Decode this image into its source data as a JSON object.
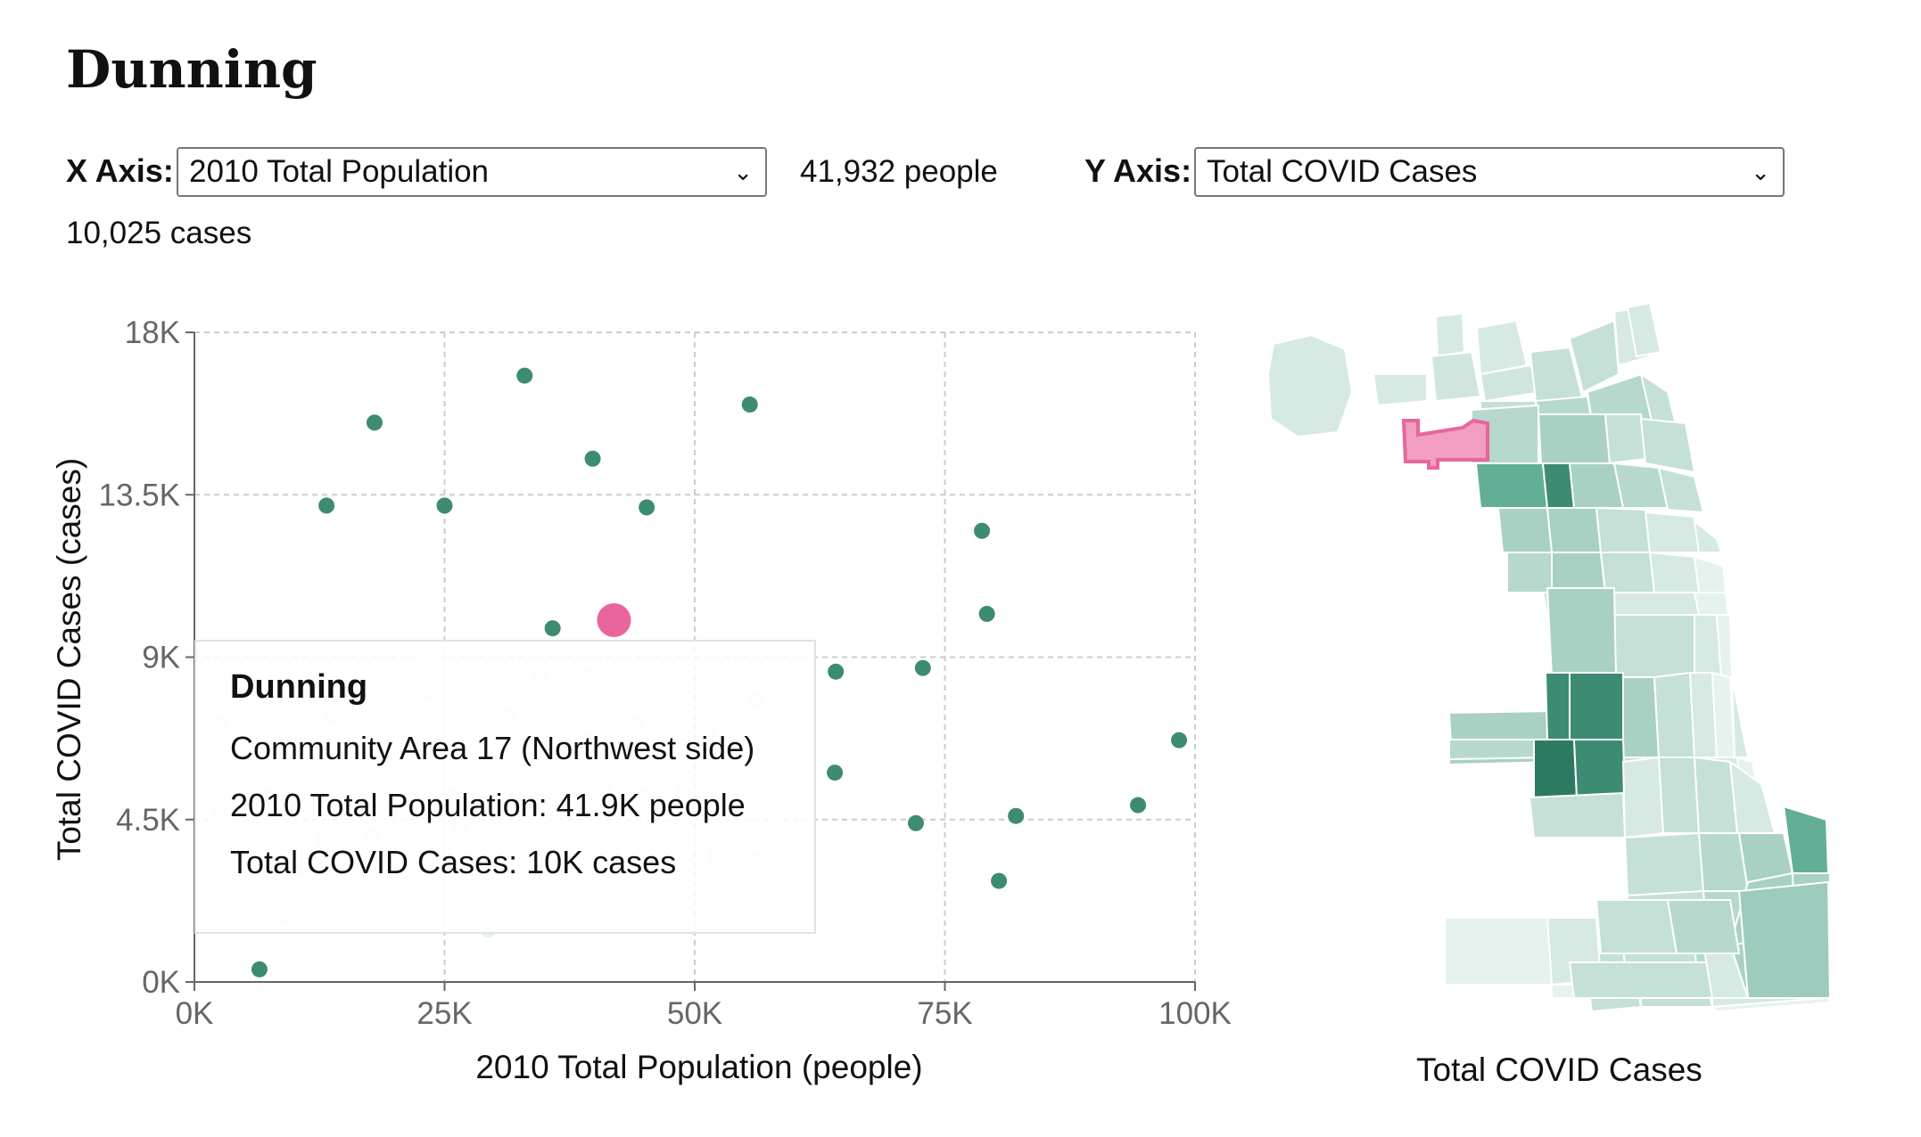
{
  "title": "Dunning",
  "controls": {
    "x_label": "X Axis:",
    "x_selected": "2010 Total Population",
    "x_value": "41,932 people",
    "y_label": "Y Axis:",
    "y_selected": "Total COVID Cases",
    "y_value": "10,025 cases"
  },
  "colors": {
    "point": "#3d8b73",
    "point_faded": "#e6f2ee",
    "highlight": "#e8659d",
    "highlight_fill": "#f29ec0",
    "grid": "#cccccc",
    "axis": "#666666"
  },
  "tooltip": {
    "title": "Dunning",
    "line1": "Community Area 17 (Northwest side)",
    "line2": "2010 Total Population: 41.9K people",
    "line3": "Total COVID Cases: 10K cases"
  },
  "chart_data": [
    {
      "type": "scatter",
      "xlabel": "2010 Total Population (people)",
      "ylabel": "Total COVID Cases (cases)",
      "xlim": [
        0,
        100000
      ],
      "ylim": [
        0,
        18000
      ],
      "x_ticks": [
        "0K",
        "25K",
        "50K",
        "75K",
        "100K"
      ],
      "y_ticks": [
        "0K",
        "4.5K",
        "9K",
        "13.5K",
        "18K"
      ],
      "grid": true,
      "highlight": {
        "x": 41932,
        "y": 10025
      },
      "points": [
        {
          "x": 33000,
          "y": 16800
        },
        {
          "x": 55500,
          "y": 16000
        },
        {
          "x": 18000,
          "y": 15500
        },
        {
          "x": 39800,
          "y": 14500
        },
        {
          "x": 13200,
          "y": 13200
        },
        {
          "x": 25000,
          "y": 13200
        },
        {
          "x": 45200,
          "y": 13150
        },
        {
          "x": 78700,
          "y": 12500
        },
        {
          "x": 79200,
          "y": 10200
        },
        {
          "x": 35800,
          "y": 9800
        },
        {
          "x": 64100,
          "y": 8600
        },
        {
          "x": 72800,
          "y": 8700
        },
        {
          "x": 98400,
          "y": 6700
        },
        {
          "x": 64000,
          "y": 5800
        },
        {
          "x": 72100,
          "y": 4400
        },
        {
          "x": 82100,
          "y": 4600
        },
        {
          "x": 94300,
          "y": 4900
        },
        {
          "x": 80400,
          "y": 2800
        },
        {
          "x": 6500,
          "y": 350
        },
        {
          "x": 23000,
          "y": 9000,
          "faded": true
        },
        {
          "x": 2800,
          "y": 7200,
          "faded": true
        },
        {
          "x": 13500,
          "y": 7300,
          "faded": true
        },
        {
          "x": 23000,
          "y": 8000,
          "faded": true
        },
        {
          "x": 34500,
          "y": 8400,
          "faded": true
        },
        {
          "x": 39600,
          "y": 8500,
          "faded": true
        },
        {
          "x": 53300,
          "y": 8400,
          "faded": true
        },
        {
          "x": 31000,
          "y": 7900,
          "faded": true
        },
        {
          "x": 35800,
          "y": 7900,
          "faded": true
        },
        {
          "x": 31600,
          "y": 7400,
          "faded": true
        },
        {
          "x": 44300,
          "y": 7200,
          "faded": true
        },
        {
          "x": 56200,
          "y": 7800,
          "faded": true
        },
        {
          "x": 51400,
          "y": 6800,
          "faded": true
        },
        {
          "x": 39400,
          "y": 6700,
          "faded": true
        },
        {
          "x": 7000,
          "y": 5200,
          "faded": true
        },
        {
          "x": 13300,
          "y": 5500,
          "faded": true
        },
        {
          "x": 25300,
          "y": 5200,
          "faded": true
        },
        {
          "x": 29800,
          "y": 5000,
          "faded": true
        },
        {
          "x": 41200,
          "y": 5300,
          "faded": true
        },
        {
          "x": 44700,
          "y": 5200,
          "faded": true
        },
        {
          "x": 48800,
          "y": 5300,
          "faded": true
        },
        {
          "x": 2500,
          "y": 4600,
          "faded": true
        },
        {
          "x": 17800,
          "y": 4100,
          "faded": true
        },
        {
          "x": 26500,
          "y": 4200,
          "faded": true
        },
        {
          "x": 12800,
          "y": 3900,
          "faded": true
        },
        {
          "x": 18200,
          "y": 3400,
          "faded": true
        },
        {
          "x": 20400,
          "y": 3400,
          "faded": true
        },
        {
          "x": 23800,
          "y": 3500,
          "faded": true
        },
        {
          "x": 10500,
          "y": 3100,
          "faded": true
        },
        {
          "x": 12800,
          "y": 3100,
          "faded": true
        },
        {
          "x": 35000,
          "y": 3200,
          "faded": true
        },
        {
          "x": 37000,
          "y": 3100,
          "faded": true
        },
        {
          "x": 51900,
          "y": 3500,
          "faded": true
        },
        {
          "x": 54800,
          "y": 3300,
          "faded": true
        },
        {
          "x": 56500,
          "y": 3400,
          "faded": true
        },
        {
          "x": 9300,
          "y": 1800,
          "faded": true
        },
        {
          "x": 29400,
          "y": 1450,
          "faded": true
        }
      ]
    },
    {
      "type": "choropleth",
      "title": "Total COVID Cases",
      "highlighted_area": "Dunning"
    }
  ]
}
